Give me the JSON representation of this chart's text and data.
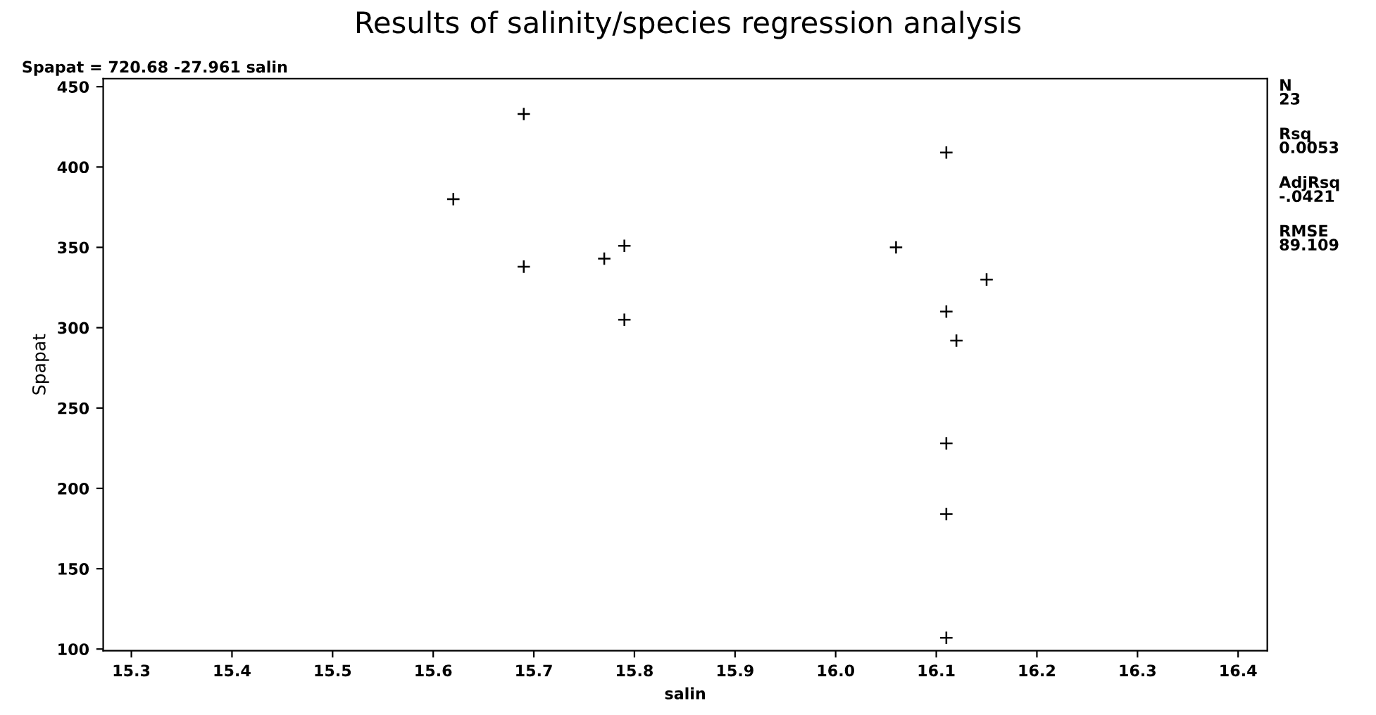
{
  "chart_data": {
    "type": "scatter",
    "title": "Results of salinity/species regression analysis",
    "xlabel": "salin",
    "ylabel": "Spapat",
    "x": [
      15.62,
      15.69,
      15.69,
      15.77,
      15.79,
      15.79,
      16.06,
      16.11,
      16.15,
      16.11,
      16.12,
      16.11,
      16.11,
      16.11
    ],
    "values": [
      380,
      433,
      338,
      343,
      351,
      305,
      350,
      409,
      330,
      310,
      292,
      228,
      184,
      107
    ],
    "color": "#000000",
    "marker": "cross",
    "grid": false,
    "legend": false,
    "xlim": [
      15.272,
      16.429
    ],
    "xticks": [
      15.3,
      15.4,
      15.5,
      15.6,
      15.7,
      15.8,
      15.9,
      {
        "value": 16.0,
        "label": "16.0"
      },
      16.1,
      16.2,
      16.3,
      16.4
    ],
    "ylim": [
      99,
      455
    ],
    "yticks": [
      100,
      150,
      200,
      250,
      300,
      350,
      400,
      450
    ],
    "annotations": [
      "Spapat = 720.68 -27.961 salin",
      "N\n23",
      "Rsq\n0.0053",
      "AdjRsq\n-.0421",
      "RMSE\n89.109"
    ]
  }
}
